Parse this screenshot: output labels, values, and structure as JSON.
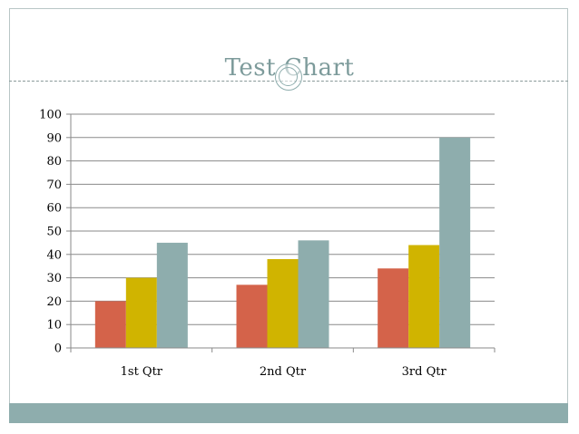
{
  "chart_data": {
    "type": "bar",
    "title": "Test Chart",
    "categories": [
      "1st Qtr",
      "2nd Qtr",
      "3rd Qtr"
    ],
    "series": [
      {
        "values": [
          20,
          27,
          34
        ],
        "color": "#d4634a"
      },
      {
        "values": [
          30,
          38,
          44
        ],
        "color": "#d0b400"
      },
      {
        "values": [
          45,
          46,
          90
        ],
        "color": "#8eadad"
      }
    ],
    "ylim": [
      0,
      100
    ],
    "yticks": [
      "0",
      "10",
      "20",
      "30",
      "40",
      "50",
      "60",
      "70",
      "80",
      "90",
      "100"
    ],
    "grid": true,
    "legend": "none",
    "xlabel": "",
    "ylabel": ""
  }
}
